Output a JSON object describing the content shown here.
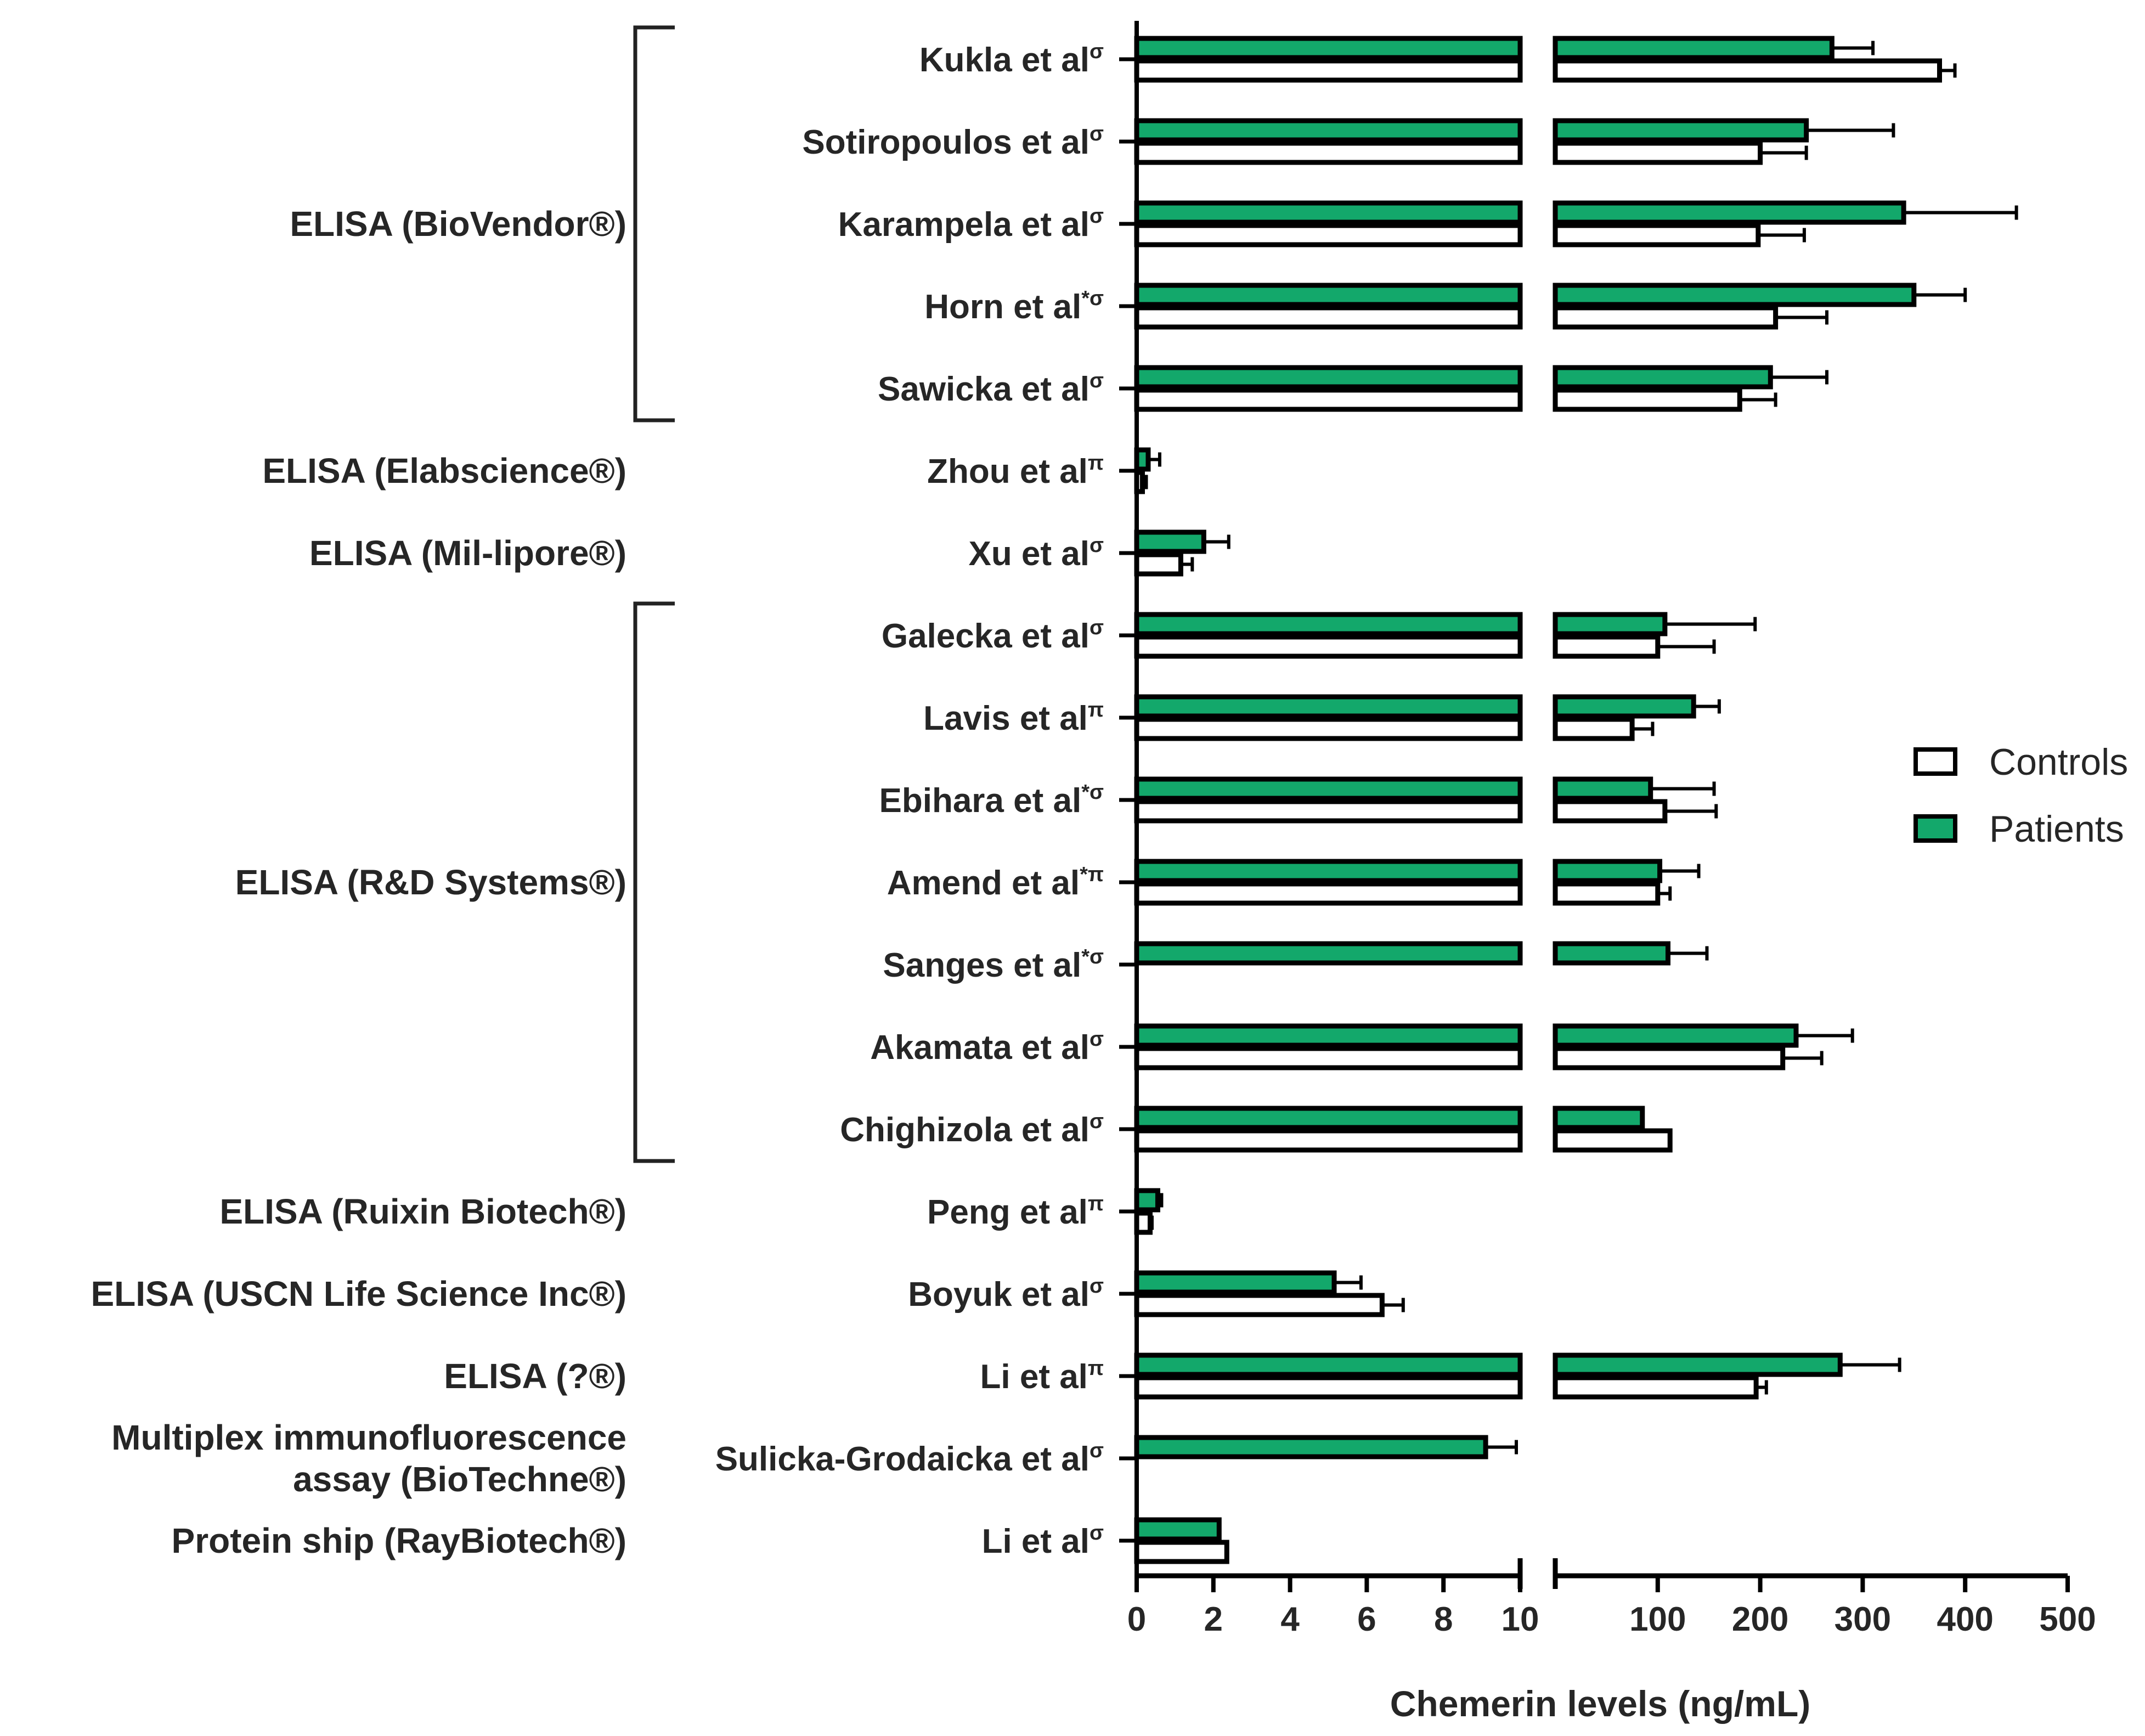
{
  "chart_data": {
    "type": "bar",
    "orientation": "horizontal",
    "xlabel": "Chemerin levels (ng/mL)",
    "axis_segments": [
      {
        "range": [
          0,
          10
        ],
        "ticks": [
          0,
          2,
          4,
          6,
          8,
          10
        ]
      },
      {
        "range": [
          0,
          500
        ],
        "ticks": [
          100,
          200,
          300,
          400,
          500
        ]
      }
    ],
    "legend": {
      "position": "right",
      "entries": [
        {
          "name": "Controls",
          "fill": "#ffffff"
        },
        {
          "name": "Patients",
          "fill": "#13a86b"
        }
      ]
    },
    "colors": {
      "patients": "#13a86b",
      "controls": "#ffffff",
      "stroke": "#000000",
      "text": "#262626"
    },
    "methods": [
      {
        "label": "ELISA (BioVendor®)",
        "lines": [
          "ELISA (BioVendor®)"
        ],
        "first": 0,
        "last": 4,
        "bracket": true
      },
      {
        "label": "ELISA (Elabscience®)",
        "lines": [
          "ELISA (Elabscience®)"
        ],
        "first": 5,
        "last": 5,
        "bracket": false
      },
      {
        "label": "ELISA (Mil-lipore®)",
        "lines": [
          "ELISA (Mil-lipore®)"
        ],
        "first": 6,
        "last": 6,
        "bracket": false
      },
      {
        "label": "ELISA (R&D Systems®)",
        "lines": [
          "ELISA (R&D Systems®)"
        ],
        "first": 7,
        "last": 13,
        "bracket": true
      },
      {
        "label": "ELISA (Ruixin Biotech®)",
        "lines": [
          "ELISA (Ruixin Biotech®)"
        ],
        "first": 14,
        "last": 14,
        "bracket": false
      },
      {
        "label": "ELISA (USCN Life Science Inc®)",
        "lines": [
          "ELISA (USCN Life Science Inc®)"
        ],
        "first": 15,
        "last": 15,
        "bracket": false
      },
      {
        "label": "ELISA (?®)",
        "lines": [
          "ELISA (?®)"
        ],
        "first": 16,
        "last": 16,
        "bracket": false
      },
      {
        "label": "Multiplex immunofluorescence assay (BioTechne®)",
        "lines": [
          "Multiplex immunofluorescence",
          "assay (BioTechne®)"
        ],
        "first": 17,
        "last": 17,
        "bracket": false
      },
      {
        "label": "Protein ship (RayBiotech®)",
        "lines": [
          "Protein ship (RayBiotech®)"
        ],
        "first": 18,
        "last": 18,
        "bracket": false
      }
    ],
    "studies": [
      {
        "name": "Kukla et al",
        "mark": "σ",
        "patients": 270,
        "patients_err": 40,
        "controls": 375,
        "controls_err": 15
      },
      {
        "name": "Sotiropoulos et al",
        "mark": "σ",
        "patients": 245,
        "patients_err": 85,
        "controls": 200,
        "controls_err": 45
      },
      {
        "name": "Karampela et al",
        "mark": "σ",
        "patients": 340,
        "patients_err": 110,
        "controls": 198,
        "controls_err": 45
      },
      {
        "name": "Horn et al",
        "mark": "*σ",
        "patients": 350,
        "patients_err": 50,
        "controls": 215,
        "controls_err": 50
      },
      {
        "name": "Sawicka et al",
        "mark": "σ",
        "patients": 210,
        "patients_err": 55,
        "controls": 180,
        "controls_err": 35
      },
      {
        "name": "Zhou et al",
        "mark": "π",
        "patients": 0.3,
        "patients_err": 0.3,
        "controls": 0.15,
        "controls_err": 0.1
      },
      {
        "name": "Xu et al",
        "mark": "σ",
        "patients": 1.75,
        "patients_err": 0.65,
        "controls": 1.15,
        "controls_err": 0.3
      },
      {
        "name": "Galecka et al",
        "mark": "σ",
        "patients": 107,
        "patients_err": 88,
        "controls": 100,
        "controls_err": 55
      },
      {
        "name": "Lavis et al",
        "mark": "π",
        "patients": 135,
        "patients_err": 25,
        "controls": 75,
        "controls_err": 20
      },
      {
        "name": "Ebihara et al",
        "mark": "*σ",
        "patients": 93,
        "patients_err": 62,
        "controls": 107,
        "controls_err": 50
      },
      {
        "name": "Amend et al",
        "mark": "*π",
        "patients": 102,
        "patients_err": 38,
        "controls": 100,
        "controls_err": 12
      },
      {
        "name": "Sanges et al",
        "mark": "*σ",
        "patients": 110,
        "patients_err": 38,
        "controls": null,
        "controls_err": null
      },
      {
        "name": "Akamata et al",
        "mark": "σ",
        "patients": 235,
        "patients_err": 55,
        "controls": 222,
        "controls_err": 38
      },
      {
        "name": "Chighizola et al",
        "mark": "σ",
        "patients": 85,
        "patients_err": 0,
        "controls": 112,
        "controls_err": 0
      },
      {
        "name": "Peng et al",
        "mark": "π",
        "patients": 0.55,
        "patients_err": 0.1,
        "controls": 0.35,
        "controls_err": 0.05
      },
      {
        "name": "Boyuk et al",
        "mark": "σ",
        "patients": 5.15,
        "patients_err": 0.7,
        "controls": 6.4,
        "controls_err": 0.55
      },
      {
        "name": "Li et al",
        "mark": "π",
        "patients": 278,
        "patients_err": 58,
        "controls": 196,
        "controls_err": 10
      },
      {
        "name": "Sulicka-Grodaicka et al",
        "mark": "σ",
        "patients": 9.1,
        "patients_err": 0.8,
        "controls": null,
        "controls_err": null
      },
      {
        "name": "Li et al",
        "mark": "σ",
        "patients": 2.15,
        "patients_err": 0,
        "controls": 2.35,
        "controls_err": 0
      }
    ]
  }
}
